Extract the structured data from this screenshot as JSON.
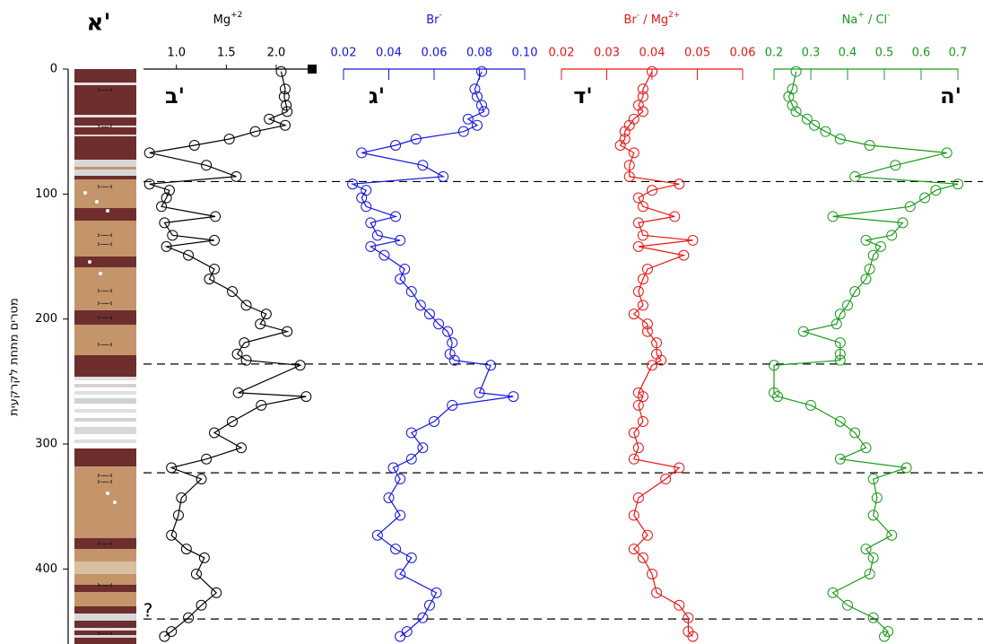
{
  "chart_data": {
    "type": "depth-profile",
    "column_label": "א'",
    "ylabel": "מטרים מתחת לקרקעית",
    "ylim": [
      0,
      460
    ],
    "yticks": [
      0,
      100,
      200,
      300,
      400
    ],
    "boundaries": [
      90,
      236,
      323,
      440
    ],
    "annotation": "?",
    "annotation_depth": 434,
    "depth": [
      2,
      16,
      22,
      29,
      34,
      40,
      45,
      50,
      56,
      61,
      67,
      77,
      86,
      92,
      97,
      103,
      110,
      118,
      123,
      133,
      137,
      142,
      149,
      160,
      168,
      178,
      189,
      196,
      204,
      210,
      219,
      228,
      233,
      237,
      259,
      262,
      269,
      282,
      291,
      303,
      312,
      319,
      328,
      343,
      357,
      373,
      384,
      391,
      404,
      419,
      429,
      439,
      450,
      454
    ],
    "panels": [
      {
        "label": "ב'",
        "title": [
          "Mg",
          "+2"
        ],
        "color": "#000000",
        "xlim": [
          0.67,
          2.36
        ],
        "xticks": [
          {
            "value": 1.0,
            "label": "1.0"
          },
          1.5,
          {
            "value": 2.0,
            "label": "2.0"
          }
        ],
        "values": [
          2.05,
          2.09,
          2.08,
          2.1,
          2.11,
          1.93,
          2.09,
          1.79,
          1.53,
          1.18,
          0.73,
          1.3,
          1.6,
          0.73,
          0.93,
          0.9,
          0.85,
          1.39,
          0.88,
          0.96,
          1.38,
          0.9,
          1.12,
          1.38,
          1.33,
          1.56,
          1.7,
          1.9,
          1.84,
          2.11,
          1.68,
          1.61,
          1.7,
          2.24,
          1.62,
          2.3,
          1.85,
          1.56,
          1.38,
          1.65,
          1.3,
          0.95,
          1.25,
          1.05,
          1.02,
          0.95,
          1.1,
          1.28,
          1.2,
          1.4,
          1.25,
          1.12,
          0.95,
          0.88
        ]
      },
      {
        "label": "ג'",
        "title": [
          "Br",
          "-"
        ],
        "color": "#1515e0",
        "xlim": [
          0.02,
          0.1
        ],
        "xticks": [
          0.02,
          0.04,
          0.06,
          0.08,
          {
            "value": 0.1,
            "label": "0.10"
          }
        ],
        "values": [
          0.081,
          0.078,
          0.079,
          0.081,
          0.082,
          0.075,
          0.079,
          0.073,
          0.052,
          0.043,
          0.028,
          0.055,
          0.064,
          0.024,
          0.03,
          0.028,
          0.03,
          0.043,
          0.032,
          0.035,
          0.045,
          0.032,
          0.038,
          0.047,
          0.045,
          0.05,
          0.054,
          0.058,
          0.062,
          0.066,
          0.068,
          0.067,
          0.069,
          0.085,
          0.08,
          0.095,
          0.068,
          0.06,
          0.05,
          0.055,
          0.05,
          0.042,
          0.045,
          0.04,
          0.045,
          0.035,
          0.043,
          0.05,
          0.045,
          0.061,
          0.058,
          0.055,
          0.048,
          0.045
        ]
      },
      {
        "label": "ד'",
        "title": [
          "Br",
          "-",
          " / Mg",
          "2+"
        ],
        "color": "#e81515",
        "xlim": [
          0.02,
          0.06
        ],
        "xticks": [
          0.02,
          0.03,
          0.04,
          0.05,
          0.06
        ],
        "values": [
          0.04,
          0.038,
          0.038,
          0.037,
          0.038,
          0.036,
          0.035,
          0.034,
          0.034,
          0.033,
          0.036,
          0.035,
          0.035,
          0.046,
          0.04,
          0.037,
          0.038,
          0.045,
          0.037,
          0.038,
          0.049,
          0.037,
          0.047,
          0.039,
          0.038,
          0.037,
          0.038,
          0.036,
          0.039,
          0.039,
          0.041,
          0.041,
          0.042,
          0.04,
          0.037,
          0.038,
          0.037,
          0.038,
          0.036,
          0.037,
          0.036,
          0.046,
          0.043,
          0.037,
          0.036,
          0.039,
          0.036,
          0.038,
          0.04,
          0.041,
          0.046,
          0.048,
          0.048,
          0.049
        ]
      },
      {
        "label": "ה'",
        "title": [
          "Na",
          "+",
          " / Cl",
          "-"
        ],
        "color": "#1a9a1a",
        "xlim": [
          0.2,
          0.7
        ],
        "xticks": [
          0.2,
          0.3,
          0.4,
          0.5,
          0.6,
          0.7
        ],
        "values": [
          0.26,
          0.25,
          0.24,
          0.25,
          0.26,
          0.29,
          0.31,
          0.34,
          0.38,
          0.46,
          0.67,
          0.53,
          0.42,
          0.7,
          0.64,
          0.61,
          0.57,
          0.36,
          0.55,
          0.52,
          0.45,
          0.49,
          0.47,
          0.46,
          0.45,
          0.42,
          0.4,
          0.38,
          0.37,
          0.28,
          0.38,
          0.38,
          0.38,
          0.2,
          0.2,
          0.21,
          0.3,
          0.38,
          0.42,
          0.45,
          0.38,
          0.56,
          0.47,
          0.48,
          0.47,
          0.52,
          0.45,
          0.47,
          0.46,
          0.36,
          0.4,
          0.47,
          0.51,
          0.5
        ]
      }
    ]
  }
}
